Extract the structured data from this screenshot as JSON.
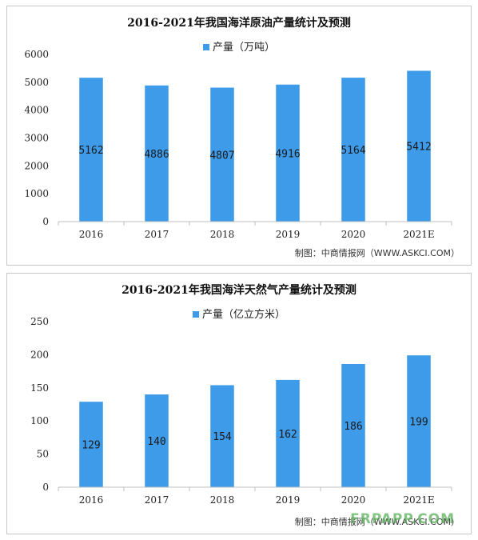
{
  "accent_color": "#3d9be9",
  "chart_data": [
    {
      "type": "bar",
      "title": "2016-2021年我国海洋原油产量统计及预测",
      "categories": [
        "2016",
        "2017",
        "2018",
        "2019",
        "2020",
        "2021E"
      ],
      "series": [
        {
          "name": "产量（万吨）",
          "values": [
            5162,
            4886,
            4807,
            4916,
            5164,
            5412
          ]
        }
      ],
      "ylim": [
        0,
        6000
      ],
      "yticks": [
        0,
        1000,
        2000,
        3000,
        4000,
        5000,
        6000
      ],
      "xlabel": "",
      "ylabel": "",
      "grid": false,
      "legend": "top",
      "source": "制图：中商情报网（WWW.ASKCI.COM）"
    },
    {
      "type": "bar",
      "title": "2016-2021年我国海洋天然气产量统计及预测",
      "categories": [
        "2016",
        "2017",
        "2018",
        "2019",
        "2020",
        "2021E"
      ],
      "series": [
        {
          "name": "产量（亿立方米）",
          "values": [
            129,
            140,
            154,
            162,
            186,
            199
          ]
        }
      ],
      "ylim": [
        0,
        250
      ],
      "yticks": [
        0,
        50,
        100,
        150,
        200,
        250
      ],
      "xlabel": "",
      "ylabel": "",
      "grid": false,
      "legend": "top",
      "source": "制图：中商情报网（WWW.ASKCI.COM）"
    }
  ],
  "watermark_text": "FRPAPP.COM"
}
